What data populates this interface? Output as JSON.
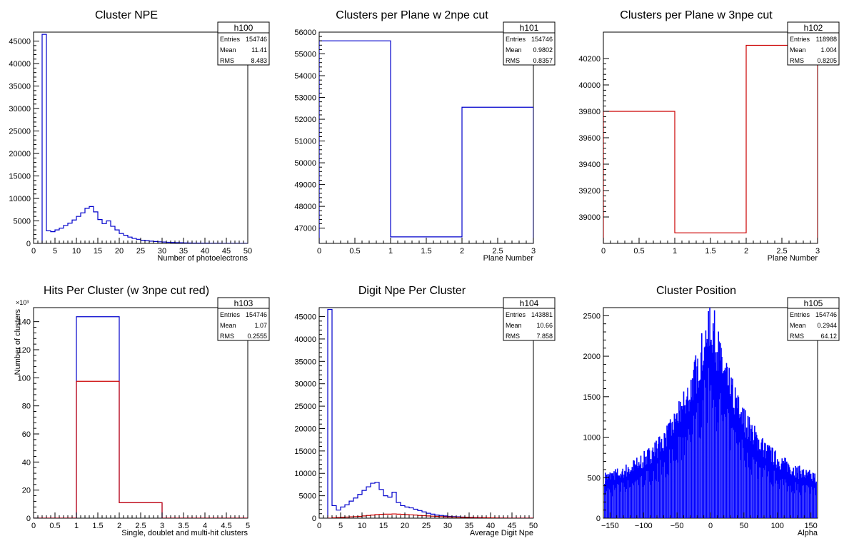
{
  "chart_data": [
    {
      "type": "histogram",
      "title": "Cluster NPE",
      "xlabel": "Number of photoelectrons",
      "ylabel": "",
      "xlim": [
        0,
        50
      ],
      "ylim": [
        0,
        47000
      ],
      "yticks": [
        0,
        5000,
        10000,
        15000,
        20000,
        25000,
        30000,
        35000,
        40000,
        45000
      ],
      "xticks": [
        0,
        5,
        10,
        15,
        20,
        25,
        30,
        35,
        40,
        45,
        50
      ],
      "y_exponent_label": "",
      "stats": {
        "name": "h100",
        "rows": [
          [
            "Entries",
            "154746"
          ],
          [
            "Mean",
            "11.41"
          ],
          [
            "RMS",
            "8.483"
          ]
        ]
      },
      "series": [
        {
          "color": "#0000cc",
          "style": "step",
          "bin_edges_start": 2,
          "bin_width": 1,
          "values": [
            46500,
            2800,
            2600,
            3000,
            3400,
            4000,
            4500,
            5200,
            6000,
            6800,
            7800,
            8200,
            7000,
            5300,
            4400,
            5000,
            3800,
            3000,
            2200,
            1800,
            1400,
            1100,
            900,
            700,
            600,
            500,
            420,
            350,
            300,
            250,
            200,
            170,
            140,
            110,
            90,
            70,
            55,
            45,
            35,
            25,
            20,
            15,
            10,
            8,
            5,
            3,
            2,
            1
          ]
        }
      ]
    },
    {
      "type": "histogram",
      "title": "Clusters per Plane w 2npe cut",
      "xlabel": "Plane Number",
      "ylabel": "",
      "xlim": [
        0,
        3
      ],
      "ylim": [
        46300,
        56000
      ],
      "yticks": [
        47000,
        48000,
        49000,
        50000,
        51000,
        52000,
        53000,
        54000,
        55000,
        56000
      ],
      "xticks": [
        0,
        0.5,
        1,
        1.5,
        2,
        2.5,
        3
      ],
      "y_exponent_label": "",
      "stats": {
        "name": "h101",
        "rows": [
          [
            "Entries",
            "154746"
          ],
          [
            "Mean",
            "0.9802"
          ],
          [
            "RMS",
            "0.8357"
          ]
        ]
      },
      "series": [
        {
          "color": "#0000cc",
          "style": "step",
          "bin_edges_start": 0,
          "bin_width": 1,
          "values": [
            55600,
            46600,
            52550
          ]
        }
      ]
    },
    {
      "type": "histogram",
      "title": "Clusters per Plane w 3npe cut",
      "xlabel": "Plane Number",
      "ylabel": "",
      "xlim": [
        0,
        3
      ],
      "ylim": [
        38800,
        40400
      ],
      "yticks": [
        39000,
        39200,
        39400,
        39600,
        39800,
        40000,
        40200
      ],
      "xticks": [
        0,
        0.5,
        1,
        1.5,
        2,
        2.5,
        3
      ],
      "y_exponent_label": "",
      "stats": {
        "name": "h102",
        "rows": [
          [
            "Entries",
            "118988"
          ],
          [
            "Mean",
            "1.004"
          ],
          [
            "RMS",
            "0.8205"
          ]
        ]
      },
      "series": [
        {
          "color": "#cc0000",
          "style": "step",
          "bin_edges_start": 0,
          "bin_width": 1,
          "values": [
            39800,
            38880,
            40300
          ]
        }
      ]
    },
    {
      "type": "histogram",
      "title": "Hits Per Cluster (w 3npe cut red)",
      "xlabel": "Single, doublet and multi-hit clusters",
      "ylabel": "Number of clusters",
      "xlim": [
        0,
        5
      ],
      "ylim": [
        0,
        150
      ],
      "yticks": [
        0,
        20,
        40,
        60,
        80,
        100,
        120,
        140
      ],
      "xticks": [
        0,
        0.5,
        1,
        1.5,
        2,
        2.5,
        3,
        3.5,
        4,
        4.5,
        5
      ],
      "y_exponent_label": "×10³",
      "stats": {
        "name": "h103",
        "rows": [
          [
            "Entries",
            "154746"
          ],
          [
            "Mean",
            "1.07"
          ],
          [
            "RMS",
            "0.2555"
          ]
        ]
      },
      "series": [
        {
          "color": "#0000cc",
          "style": "step",
          "bin_edges_start": 0,
          "bin_width": 1,
          "values": [
            0,
            143.5,
            11,
            0,
            0
          ]
        },
        {
          "color": "#cc0000",
          "style": "step",
          "bin_edges_start": 0,
          "bin_width": 1,
          "values": [
            0,
            97.5,
            11,
            0,
            0
          ]
        }
      ]
    },
    {
      "type": "histogram",
      "title": "Digit Npe Per Cluster",
      "xlabel": "Average Digit Npe",
      "ylabel": "",
      "xlim": [
        0,
        50
      ],
      "ylim": [
        0,
        47000
      ],
      "yticks": [
        0,
        5000,
        10000,
        15000,
        20000,
        25000,
        30000,
        35000,
        40000,
        45000
      ],
      "xticks": [
        0,
        5,
        10,
        15,
        20,
        25,
        30,
        35,
        40,
        45,
        50
      ],
      "y_exponent_label": "",
      "stats": {
        "name": "h104",
        "rows": [
          [
            "Entries",
            "143881"
          ],
          [
            "Mean",
            "10.66"
          ],
          [
            "RMS",
            "7.858"
          ]
        ]
      },
      "series": [
        {
          "color": "#0000cc",
          "style": "step",
          "bin_edges_start": 2,
          "bin_width": 1,
          "values": [
            46600,
            2800,
            1800,
            2500,
            3000,
            3800,
            4500,
            5300,
            6200,
            7000,
            7800,
            8000,
            6400,
            5000,
            4700,
            5800,
            3500,
            2800,
            2500,
            2300,
            2000,
            1700,
            1400,
            1100,
            900,
            700,
            600,
            500,
            400,
            350,
            300,
            250,
            200,
            160,
            130,
            100,
            80,
            60,
            45,
            30,
            20,
            12,
            8,
            5,
            3,
            2,
            1,
            1
          ]
        },
        {
          "color": "#cc0000",
          "style": "step",
          "bin_edges_start": 2,
          "bin_width": 1,
          "values": [
            0,
            80,
            150,
            200,
            250,
            300,
            350,
            400,
            500,
            600,
            700,
            800,
            850,
            900,
            900,
            950,
            900,
            850,
            800,
            750,
            700,
            600,
            550,
            500,
            450,
            400,
            350,
            300,
            280,
            250,
            230,
            200,
            180,
            160,
            140,
            120,
            100,
            80,
            60,
            45,
            30,
            20,
            12,
            8,
            5,
            3,
            2,
            1
          ]
        }
      ]
    },
    {
      "type": "histogram",
      "title": "Cluster Position",
      "xlabel": "Alpha",
      "ylabel": "",
      "xlim": [
        -160,
        160
      ],
      "ylim": [
        0,
        2600
      ],
      "yticks": [
        0,
        500,
        1000,
        1500,
        2000,
        2500
      ],
      "xticks": [
        -150,
        -100,
        -50,
        0,
        50,
        100,
        150
      ],
      "xtick_labels": [
        "−150",
        "−100",
        "−50",
        "0",
        "50",
        "100",
        "150"
      ],
      "y_exponent_label": "",
      "stats": {
        "name": "h105",
        "rows": [
          [
            "Entries",
            "154746"
          ],
          [
            "Mean",
            "0.2944"
          ],
          [
            "RMS",
            "64.12"
          ]
        ]
      },
      "series": [
        {
          "color": "#0000ff",
          "style": "spiky",
          "envelope_peak": 2450,
          "envelope_floor": 380,
          "envelope_width": 55
        }
      ]
    }
  ]
}
